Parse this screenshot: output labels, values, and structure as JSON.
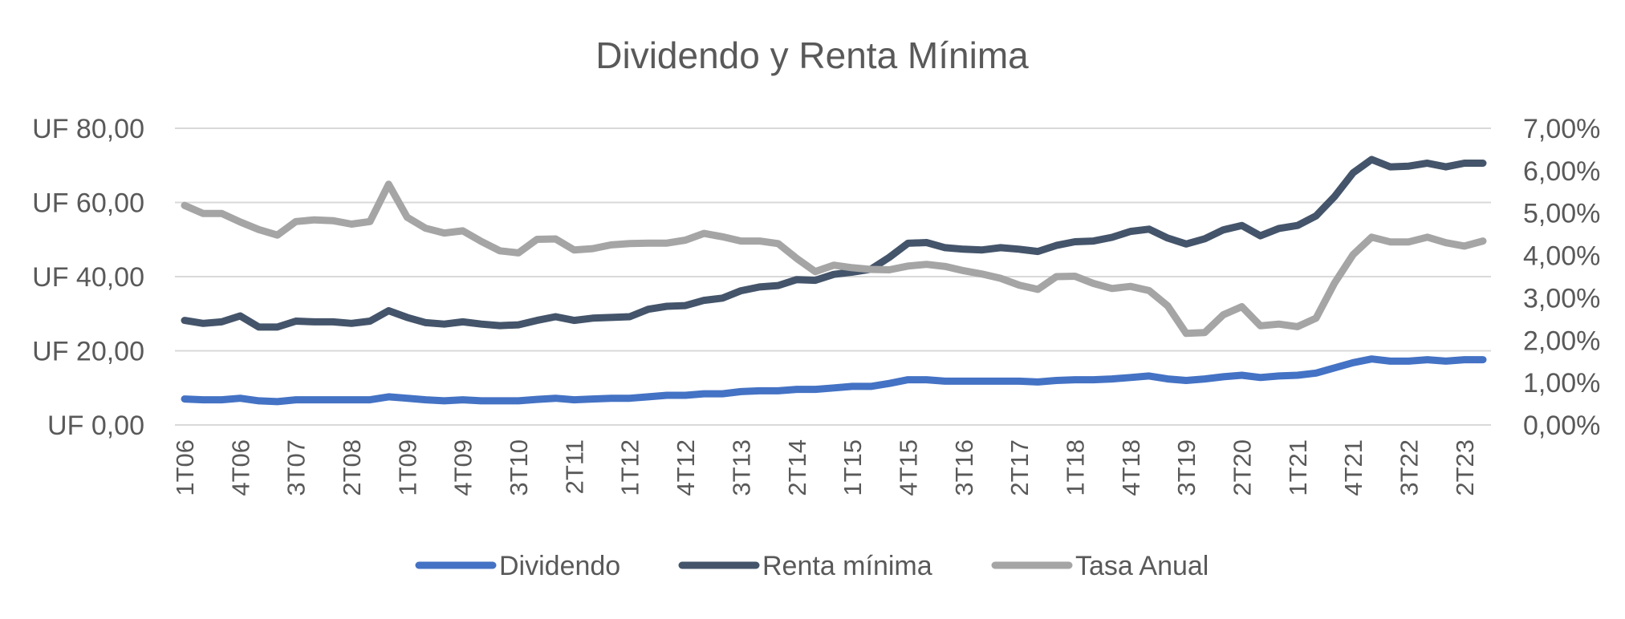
{
  "chart_data": {
    "type": "line",
    "title": "Dividendo y Renta Mínima",
    "left_axis": {
      "ticks": [
        "UF 0,00",
        "UF 20,00",
        "UF 40,00",
        "UF 60,00",
        "UF 80,00"
      ],
      "ylim": [
        0,
        80
      ]
    },
    "right_axis": {
      "ticks": [
        "0,00%",
        "1,00%",
        "2,00%",
        "3,00%",
        "4,00%",
        "5,00%",
        "6,00%",
        "7,00%"
      ],
      "ylim": [
        0,
        7
      ]
    },
    "x_tick_labels": [
      "1T06",
      "4T06",
      "3T07",
      "2T08",
      "1T09",
      "4T09",
      "3T10",
      "2T11",
      "1T12",
      "4T12",
      "3T13",
      "2T14",
      "1T15",
      "4T15",
      "3T16",
      "2T17",
      "1T18",
      "4T18",
      "3T19",
      "2T20",
      "1T21",
      "4T21",
      "3T22",
      "2T23"
    ],
    "x_tick_every": 3,
    "grid": true,
    "legend_position": "bottom",
    "colors": {
      "dividendo": "#4472C4",
      "renta": "#44546A",
      "tasa": "#A5A5A5",
      "grid": "#D9D9D9",
      "text": "#595959"
    },
    "series": [
      {
        "name": "Dividendo",
        "axis": "left",
        "color": "#4472C4",
        "values": [
          7.0,
          6.8,
          6.8,
          7.2,
          6.5,
          6.3,
          6.8,
          6.8,
          6.8,
          6.8,
          6.8,
          7.6,
          7.2,
          6.8,
          6.5,
          6.8,
          6.5,
          6.5,
          6.5,
          6.9,
          7.2,
          6.8,
          7.0,
          7.2,
          7.2,
          7.6,
          8.0,
          8.0,
          8.4,
          8.4,
          9.0,
          9.2,
          9.2,
          9.6,
          9.6,
          10.0,
          10.4,
          10.4,
          11.2,
          12.2,
          12.2,
          11.8,
          11.8,
          11.8,
          11.8,
          11.8,
          11.6,
          12.0,
          12.2,
          12.2,
          12.4,
          12.8,
          13.2,
          12.4,
          12.0,
          12.4,
          13.0,
          13.4,
          12.8,
          13.2,
          13.4,
          14.0,
          15.4,
          16.8,
          17.8,
          17.2,
          17.2,
          17.6,
          17.2,
          17.6,
          17.6
        ]
      },
      {
        "name": "Renta mínima",
        "axis": "left",
        "color": "#44546A",
        "values": [
          28.2,
          27.4,
          27.8,
          29.4,
          26.4,
          26.4,
          28.0,
          27.8,
          27.8,
          27.4,
          28.0,
          30.8,
          29.0,
          27.6,
          27.2,
          27.8,
          27.2,
          26.8,
          27.0,
          28.2,
          29.2,
          28.2,
          28.8,
          29.0,
          29.2,
          31.2,
          32.0,
          32.2,
          33.6,
          34.2,
          36.2,
          37.2,
          37.6,
          39.2,
          39.0,
          40.6,
          41.2,
          42.0,
          45.2,
          49.0,
          49.2,
          47.8,
          47.4,
          47.2,
          47.8,
          47.4,
          46.8,
          48.4,
          49.4,
          49.6,
          50.6,
          52.2,
          52.8,
          50.4,
          48.8,
          50.2,
          52.6,
          53.8,
          51.0,
          53.0,
          53.8,
          56.4,
          61.6,
          68.0,
          71.6,
          69.6,
          69.8,
          70.6,
          69.6,
          70.6,
          70.6
        ]
      },
      {
        "name": "Tasa Anual",
        "axis": "right",
        "color": "#A5A5A5",
        "values": [
          5.18,
          4.99,
          4.99,
          4.79,
          4.61,
          4.48,
          4.8,
          4.84,
          4.82,
          4.74,
          4.8,
          5.68,
          4.9,
          4.64,
          4.53,
          4.58,
          4.33,
          4.11,
          4.06,
          4.38,
          4.39,
          4.13,
          4.16,
          4.25,
          4.28,
          4.29,
          4.29,
          4.36,
          4.52,
          4.44,
          4.34,
          4.34,
          4.28,
          3.93,
          3.62,
          3.77,
          3.71,
          3.67,
          3.66,
          3.75,
          3.79,
          3.74,
          3.64,
          3.56,
          3.46,
          3.3,
          3.2,
          3.5,
          3.51,
          3.34,
          3.22,
          3.27,
          3.17,
          2.81,
          2.16,
          2.18,
          2.6,
          2.79,
          2.34,
          2.38,
          2.32,
          2.52,
          3.35,
          4.02,
          4.43,
          4.32,
          4.32,
          4.43,
          4.3,
          4.22,
          4.34
        ]
      }
    ]
  }
}
